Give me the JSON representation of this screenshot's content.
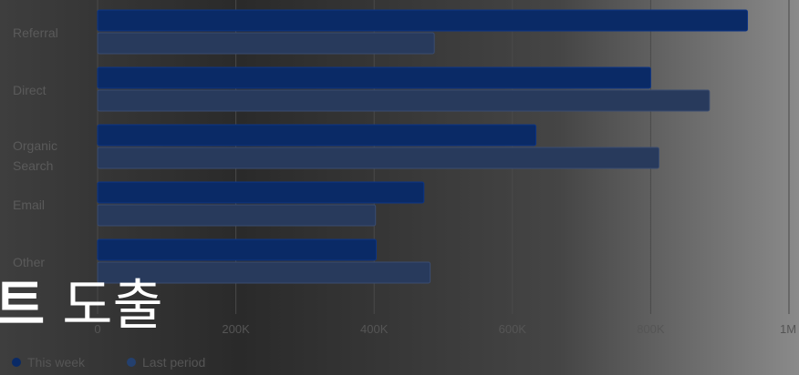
{
  "chart_data": {
    "type": "bar",
    "orientation": "horizontal",
    "categories": [
      "Referral",
      "Direct",
      "Organic Search",
      "Email",
      "Other"
    ],
    "series": [
      {
        "name": "This week",
        "values": [
          940000,
          800000,
          634000,
          472000,
          403000
        ]
      },
      {
        "name": "Last period",
        "values": [
          487000,
          885000,
          812000,
          402000,
          481000
        ]
      }
    ],
    "x_ticks": [
      "0",
      "200K",
      "400K",
      "600K",
      "800K",
      "1M"
    ],
    "xlim": [
      0,
      1000000
    ],
    "grid": true,
    "legend_position": "bottom-left",
    "colors": {
      "This week": "#0a2a66",
      "Last period": "#283a5c",
      "grid": "#4a4a4a"
    }
  },
  "overlay": {
    "bold_text": "트",
    "normal_text": " 도출"
  }
}
